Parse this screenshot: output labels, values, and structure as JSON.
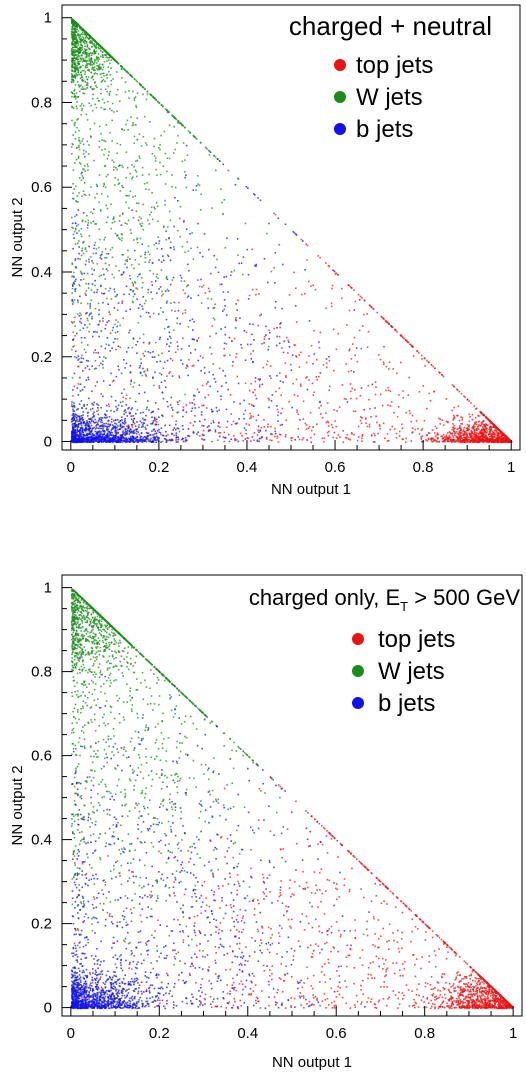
{
  "chart_data": [
    {
      "type": "scatter",
      "title_parts": [
        "charged + neutral"
      ],
      "xlabel": "NN output 1",
      "ylabel": "NN output 2",
      "xlim": [
        -0.02,
        1.02
      ],
      "ylim": [
        -0.02,
        1.03
      ],
      "xticks": [
        0,
        0.2,
        0.4,
        0.6,
        0.8,
        1
      ],
      "xtick_labels": [
        "0",
        "0.2",
        "0.4",
        "0.6",
        "0.8",
        "1"
      ],
      "yticks": [
        0,
        0.2,
        0.4,
        0.6,
        0.8,
        1
      ],
      "ytick_labels": [
        "0",
        "0.2",
        "0.4",
        "0.6",
        "0.8",
        "1"
      ],
      "legend_position": "top-right",
      "series": [
        {
          "name": "top jets",
          "color": "#ee1111",
          "clusters": [
            {
              "center": [
                0.95,
                0.01
              ],
              "spread": [
                0.06,
                0.025
              ],
              "weight": 0.6
            },
            {
              "center": [
                0.55,
                0.12
              ],
              "spread": [
                0.3,
                0.18
              ],
              "weight": 0.4
            }
          ]
        },
        {
          "name": "W jets",
          "color": "#1a8c1a",
          "clusters": [
            {
              "center": [
                0.03,
                0.94
              ],
              "spread": [
                0.04,
                0.06
              ],
              "weight": 0.55
            },
            {
              "center": [
                0.12,
                0.6
              ],
              "spread": [
                0.12,
                0.25
              ],
              "weight": 0.45
            }
          ]
        },
        {
          "name": "b jets",
          "color": "#1111ee",
          "clusters": [
            {
              "center": [
                0.06,
                0.01
              ],
              "spread": [
                0.08,
                0.03
              ],
              "weight": 0.6
            },
            {
              "center": [
                0.2,
                0.2
              ],
              "spread": [
                0.2,
                0.2
              ],
              "weight": 0.4
            }
          ]
        }
      ]
    },
    {
      "type": "scatter",
      "title_parts": [
        "charged only, E",
        "T",
        " > 500 GeV"
      ],
      "xlabel": "NN output 1",
      "ylabel": "NN output 2",
      "xlim": [
        -0.02,
        1.02
      ],
      "ylim": [
        -0.02,
        1.03
      ],
      "xticks": [
        0,
        0.2,
        0.4,
        0.6,
        0.8,
        1
      ],
      "xtick_labels": [
        "0",
        "0.2",
        "0.4",
        "0.6",
        "0.8",
        "1"
      ],
      "yticks": [
        0,
        0.2,
        0.4,
        0.6,
        0.8,
        1
      ],
      "ytick_labels": [
        "0",
        "0.2",
        "0.4",
        "0.6",
        "0.8",
        "1"
      ],
      "legend_position": "top-right",
      "series": [
        {
          "name": "top jets",
          "color": "#ee1111",
          "clusters": [
            {
              "center": [
                0.95,
                0.02
              ],
              "spread": [
                0.06,
                0.03
              ],
              "weight": 0.55
            },
            {
              "center": [
                0.6,
                0.15
              ],
              "spread": [
                0.28,
                0.18
              ],
              "weight": 0.45
            }
          ]
        },
        {
          "name": "W jets",
          "color": "#1a8c1a",
          "clusters": [
            {
              "center": [
                0.04,
                0.92
              ],
              "spread": [
                0.05,
                0.07
              ],
              "weight": 0.5
            },
            {
              "center": [
                0.14,
                0.62
              ],
              "spread": [
                0.14,
                0.25
              ],
              "weight": 0.5
            }
          ]
        },
        {
          "name": "b jets",
          "color": "#1111ee",
          "clusters": [
            {
              "center": [
                0.05,
                0.02
              ],
              "spread": [
                0.07,
                0.04
              ],
              "weight": 0.55
            },
            {
              "center": [
                0.2,
                0.22
              ],
              "spread": [
                0.2,
                0.22
              ],
              "weight": 0.45
            }
          ]
        }
      ]
    }
  ]
}
